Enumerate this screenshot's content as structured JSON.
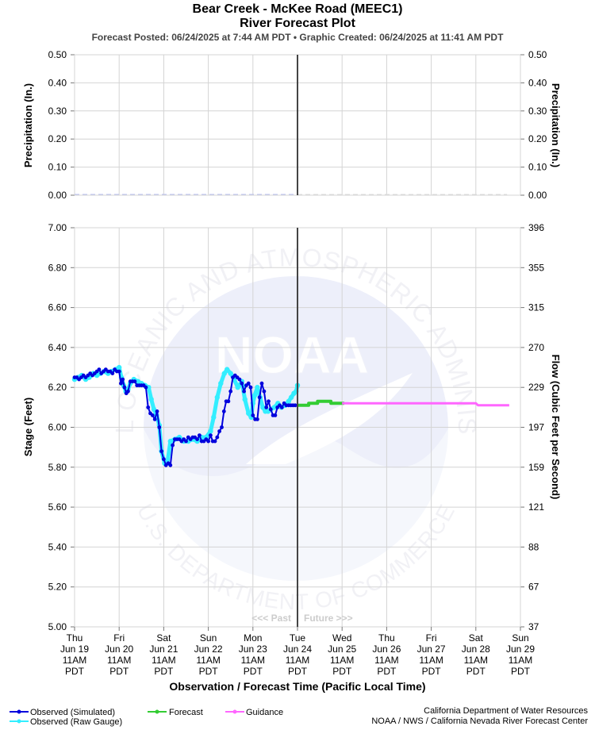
{
  "title_line1": "Bear Creek - McKee Road (MEEC1)",
  "title_line2": "River Forecast Plot",
  "subtitle": "Forecast Posted: 06/24/2025 at 7:44 AM PDT  •  Graphic Created: 06/24/2025 at 11:41 AM PDT",
  "precip_axis_label": "Precipitation (In.)",
  "stage_axis_label": "Stage (Feet)",
  "flow_axis_label": "Flow (Cubic Feet per Second)",
  "x_axis_label": "Observation / Forecast Time (Pacific Local Time)",
  "past_label": "<<< Past",
  "future_label": "Future >>>",
  "credits": {
    "line1": "California Department of Water Resources",
    "line2": "NOAA / NWS / California Nevada River Forecast Center"
  },
  "legend": [
    {
      "label": "Observed (Simulated)",
      "color": "#0000dd"
    },
    {
      "label": "Observed (Raw Gauge)",
      "color": "#33eeff"
    },
    {
      "label": "Forecast",
      "color": "#33cc33"
    },
    {
      "label": "Guidance",
      "color": "#ff66ff"
    }
  ],
  "watermark": {
    "logo_text": "NOAA",
    "ring_text_top": "NATIONAL OCEANIC AND ATMOSPHERIC ADMINISTRATION",
    "ring_text_bottom": "U.S. DEPARTMENT OF COMMERCE"
  },
  "chart_data": {
    "type": "line",
    "x_ticks": [
      {
        "day": "Thu",
        "date": "Jun 19",
        "time": "11AM",
        "tz": "PDT"
      },
      {
        "day": "Fri",
        "date": "Jun 20",
        "time": "11AM",
        "tz": "PDT"
      },
      {
        "day": "Sat",
        "date": "Jun 21",
        "time": "11AM",
        "tz": "PDT"
      },
      {
        "day": "Sun",
        "date": "Jun 22",
        "time": "11AM",
        "tz": "PDT"
      },
      {
        "day": "Mon",
        "date": "Jun 23",
        "time": "11AM",
        "tz": "PDT"
      },
      {
        "day": "Tue",
        "date": "Jun 24",
        "time": "11AM",
        "tz": "PDT"
      },
      {
        "day": "Wed",
        "date": "Jun 25",
        "time": "11AM",
        "tz": "PDT"
      },
      {
        "day": "Thu",
        "date": "Jun 26",
        "time": "11AM",
        "tz": "PDT"
      },
      {
        "day": "Fri",
        "date": "Jun 27",
        "time": "11AM",
        "tz": "PDT"
      },
      {
        "day": "Sat",
        "date": "Jun 28",
        "time": "11AM",
        "tz": "PDT"
      },
      {
        "day": "Sun",
        "date": "Jun 29",
        "time": "11AM",
        "tz": "PDT"
      }
    ],
    "x_range_days": [
      0,
      10
    ],
    "now_day": 5,
    "precip": {
      "ylim": [
        0,
        0.5
      ],
      "ticks": [
        "0.00",
        "0.10",
        "0.20",
        "0.30",
        "0.40",
        "0.50"
      ],
      "observed": {
        "x": [
          0,
          5
        ],
        "y": [
          0,
          0
        ]
      },
      "forecast": {
        "x": [
          5,
          9.7
        ],
        "y": [
          0,
          0
        ]
      }
    },
    "stage": {
      "ylim": [
        5.0,
        7.0
      ],
      "ticks": [
        "5.00",
        "5.20",
        "5.40",
        "5.60",
        "5.80",
        "6.00",
        "6.20",
        "6.40",
        "6.60",
        "6.80",
        "7.00"
      ],
      "flow_ticks": [
        "37",
        "67",
        "88",
        "121",
        "159",
        "197",
        "229",
        "270",
        "315",
        "355",
        "396"
      ]
    },
    "series": [
      {
        "name": "Observed (Raw Gauge)",
        "x": [
          0,
          0.08,
          0.16,
          0.25,
          0.33,
          0.42,
          0.5,
          0.58,
          0.66,
          0.75,
          0.83,
          0.92,
          1.0,
          1.05,
          1.1,
          1.15,
          1.2,
          1.25,
          1.33,
          1.42,
          1.5,
          1.58,
          1.66,
          1.72,
          1.78,
          1.84,
          1.9,
          1.95,
          2.02,
          2.08,
          2.15,
          2.25,
          2.35,
          2.45,
          2.55,
          2.65,
          2.75,
          2.85,
          2.95,
          3.05,
          3.12,
          3.2,
          3.28,
          3.36,
          3.42,
          3.5,
          3.58,
          3.66,
          3.75,
          3.82,
          3.9,
          3.96,
          4.0,
          4.04,
          4.1,
          4.16,
          4.22,
          4.28,
          4.34,
          4.4,
          4.48,
          4.56,
          4.64,
          4.72,
          4.8,
          4.86,
          4.92,
          4.97,
          5.0
        ],
        "y": [
          6.24,
          6.25,
          6.26,
          6.24,
          6.25,
          6.27,
          6.26,
          6.27,
          6.28,
          6.27,
          6.28,
          6.29,
          6.3,
          6.25,
          6.21,
          6.18,
          6.19,
          6.22,
          6.24,
          6.23,
          6.22,
          6.21,
          6.2,
          6.14,
          6.09,
          6.06,
          6.01,
          5.88,
          5.82,
          5.82,
          5.93,
          5.94,
          5.95,
          5.93,
          5.93,
          5.94,
          5.93,
          5.95,
          5.95,
          5.98,
          6.05,
          6.15,
          6.22,
          6.27,
          6.29,
          6.27,
          6.24,
          6.2,
          6.23,
          6.14,
          6.07,
          6.05,
          6.12,
          6.16,
          6.2,
          6.15,
          6.1,
          6.08,
          6.08,
          6.09,
          6.1,
          6.12,
          6.1,
          6.11,
          6.13,
          6.15,
          6.17,
          6.18,
          6.21
        ]
      },
      {
        "name": "Observed (Simulated)",
        "x": [
          0,
          0.05,
          0.1,
          0.15,
          0.2,
          0.25,
          0.3,
          0.35,
          0.4,
          0.45,
          0.5,
          0.55,
          0.6,
          0.65,
          0.7,
          0.75,
          0.8,
          0.85,
          0.9,
          0.95,
          1.0,
          1.04,
          1.08,
          1.12,
          1.16,
          1.2,
          1.25,
          1.3,
          1.35,
          1.4,
          1.45,
          1.5,
          1.55,
          1.6,
          1.65,
          1.7,
          1.75,
          1.8,
          1.85,
          1.9,
          1.95,
          2.0,
          2.05,
          2.1,
          2.15,
          2.2,
          2.25,
          2.3,
          2.35,
          2.4,
          2.45,
          2.5,
          2.55,
          2.6,
          2.65,
          2.7,
          2.75,
          2.8,
          2.85,
          2.9,
          2.95,
          3.0,
          3.05,
          3.1,
          3.15,
          3.2,
          3.25,
          3.3,
          3.35,
          3.4,
          3.45,
          3.5,
          3.55,
          3.6,
          3.65,
          3.7,
          3.75,
          3.8,
          3.85,
          3.9,
          3.95,
          4.0,
          4.05,
          4.1,
          4.15,
          4.2,
          4.25,
          4.3,
          4.35,
          4.4,
          4.45,
          4.5,
          4.55,
          4.6,
          4.65,
          4.7,
          4.75,
          4.8,
          4.85,
          4.9,
          4.95
        ],
        "y": [
          6.25,
          6.25,
          6.24,
          6.25,
          6.26,
          6.25,
          6.26,
          6.27,
          6.26,
          6.27,
          6.28,
          6.29,
          6.27,
          6.28,
          6.29,
          6.28,
          6.28,
          6.27,
          6.29,
          6.28,
          6.28,
          6.22,
          6.24,
          6.2,
          6.17,
          6.18,
          6.23,
          6.23,
          6.23,
          6.21,
          6.21,
          6.21,
          6.21,
          6.2,
          6.1,
          6.07,
          6.06,
          6.04,
          6.08,
          6.0,
          5.88,
          5.84,
          5.81,
          5.82,
          5.81,
          5.91,
          5.94,
          5.94,
          5.94,
          5.93,
          5.94,
          5.93,
          5.95,
          5.94,
          5.95,
          5.95,
          5.94,
          5.96,
          5.93,
          5.93,
          5.94,
          5.93,
          5.96,
          5.93,
          5.93,
          5.95,
          5.98,
          6.0,
          6.08,
          6.13,
          6.13,
          6.18,
          6.25,
          6.26,
          6.25,
          6.24,
          6.22,
          6.18,
          6.21,
          6.22,
          6.2,
          6.06,
          6.04,
          6.04,
          6.15,
          6.22,
          6.18,
          6.1,
          6.13,
          6.09,
          6.06,
          6.06,
          6.1,
          6.11,
          6.1,
          6.12,
          6.11,
          6.11,
          6.11,
          6.11,
          6.11
        ]
      },
      {
        "name": "Forecast",
        "x": [
          5.0,
          5.25,
          5.25,
          5.45,
          5.45,
          5.75,
          5.75,
          5.85,
          5.85,
          6.05
        ],
        "y": [
          6.11,
          6.11,
          6.12,
          6.12,
          6.13,
          6.13,
          6.12,
          6.12,
          6.12,
          6.12
        ]
      },
      {
        "name": "Guidance",
        "x": [
          6.0,
          6.5,
          7.0,
          7.5,
          8.0,
          8.5,
          9.0,
          9.05,
          9.25,
          9.5,
          9.75
        ],
        "y": [
          6.12,
          6.12,
          6.12,
          6.12,
          6.12,
          6.12,
          6.12,
          6.11,
          6.11,
          6.11,
          6.11
        ]
      }
    ]
  }
}
